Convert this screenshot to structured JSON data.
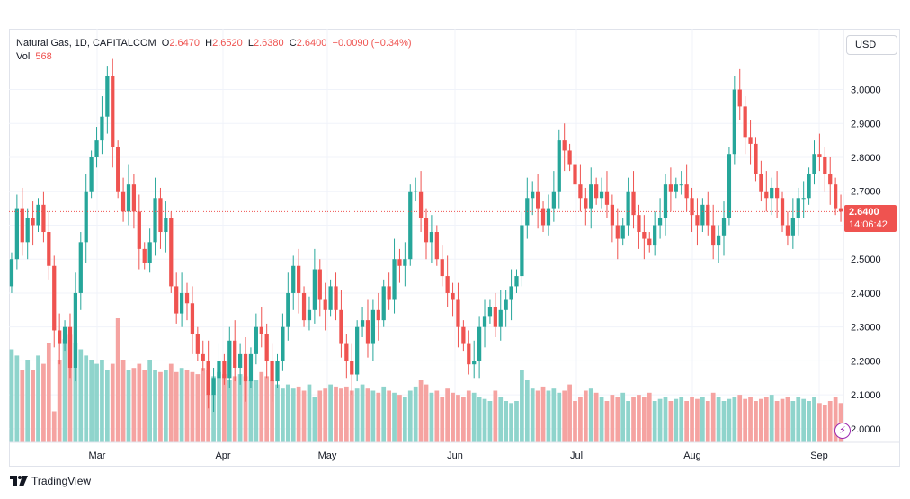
{
  "legend": {
    "symbol": "Natural Gas, 1D, CAPITALCOM",
    "o_label": "O",
    "o_value": "2.6470",
    "h_label": "H",
    "h_value": "2.6520",
    "l_label": "L",
    "l_value": "2.6380",
    "c_label": "C",
    "c_value": "2.6400",
    "change": "−0.0090 (−0.34%)",
    "vol_label": "Vol",
    "vol_value": "568"
  },
  "currency_button": "USD",
  "last_price": {
    "price": "2.6400",
    "countdown": "14:06:42"
  },
  "branding": {
    "name": "TradingView"
  },
  "colors": {
    "up": "#26a69a",
    "down": "#ef5350",
    "up_vol": "#8fd4cc",
    "down_vol": "#f5a3a1",
    "grid": "#f0f3fa"
  },
  "chart_data": {
    "type": "candlestick",
    "title": "Natural Gas, 1D, CAPITALCOM",
    "x_tick_labels": [
      "Mar",
      "Apr",
      "May",
      "Jun",
      "Jul",
      "Aug",
      "Sep"
    ],
    "y_tick_labels": [
      "3.0000",
      "2.9000",
      "2.8000",
      "2.7000",
      "2.6000",
      "2.5000",
      "2.4000",
      "2.3000",
      "2.2000",
      "2.1000",
      "2.0000"
    ],
    "ylim": [
      1.96,
      3.11
    ],
    "last_price_line": 2.64,
    "series": [
      {
        "name": "price",
        "closes": [
          2.5,
          2.65,
          2.55,
          2.62,
          2.6,
          2.66,
          2.58,
          2.48,
          2.29,
          2.25,
          2.3,
          2.18,
          2.4,
          2.55,
          2.7,
          2.8,
          2.85,
          2.92,
          3.04,
          2.83,
          2.7,
          2.64,
          2.72,
          2.64,
          2.53,
          2.49,
          2.55,
          2.68,
          2.58,
          2.62,
          2.42,
          2.34,
          2.4,
          2.37,
          2.28,
          2.22,
          2.2,
          2.1,
          2.15,
          2.2,
          2.15,
          2.26,
          2.18,
          2.22,
          2.14,
          2.22,
          2.3,
          2.28,
          2.2,
          2.14,
          2.2,
          2.3,
          2.4,
          2.48,
          2.4,
          2.32,
          2.35,
          2.47,
          2.38,
          2.35,
          2.42,
          2.35,
          2.25,
          2.2,
          2.16,
          2.3,
          2.32,
          2.25,
          2.35,
          2.32,
          2.42,
          2.38,
          2.5,
          2.48,
          2.5,
          2.7,
          2.7,
          2.62,
          2.55,
          2.58,
          2.5,
          2.45,
          2.4,
          2.38,
          2.3,
          2.25,
          2.19,
          2.2,
          2.3,
          2.33,
          2.36,
          2.3,
          2.35,
          2.38,
          2.42,
          2.45,
          2.6,
          2.68,
          2.7,
          2.65,
          2.6,
          2.65,
          2.7,
          2.85,
          2.82,
          2.78,
          2.72,
          2.68,
          2.65,
          2.72,
          2.68,
          2.7,
          2.66,
          2.6,
          2.56,
          2.6,
          2.7,
          2.63,
          2.58,
          2.56,
          2.54,
          2.6,
          2.62,
          2.72,
          2.7,
          2.72,
          2.72,
          2.68,
          2.63,
          2.6,
          2.66,
          2.6,
          2.54,
          2.57,
          2.62,
          2.81,
          3.0,
          2.95,
          2.86,
          2.84,
          2.75,
          2.7,
          2.68,
          2.71,
          2.68,
          2.6,
          2.57,
          2.62,
          2.68,
          2.68,
          2.75,
          2.81,
          2.8,
          2.75,
          2.72,
          2.65,
          2.64
        ]
      },
      {
        "name": "volume",
        "relative_heights": [
          0.45,
          0.42,
          0.35,
          0.4,
          0.35,
          0.42,
          0.38,
          0.48,
          0.15,
          0.4,
          0.5,
          0.52,
          0.48,
          0.45,
          0.42,
          0.4,
          0.38,
          0.4,
          0.35,
          0.38,
          0.6,
          0.4,
          0.35,
          0.36,
          0.38,
          0.35,
          0.4,
          0.35,
          0.34,
          0.35,
          0.38,
          0.34,
          0.36,
          0.35,
          0.34,
          0.33,
          0.36,
          0.35,
          0.32,
          0.34,
          0.33,
          0.3,
          0.32,
          0.33,
          0.32,
          0.3,
          0.3,
          0.34,
          0.32,
          0.3,
          0.28,
          0.26,
          0.28,
          0.26,
          0.27,
          0.25,
          0.28,
          0.22,
          0.25,
          0.26,
          0.28,
          0.27,
          0.26,
          0.27,
          0.25,
          0.26,
          0.28,
          0.26,
          0.25,
          0.24,
          0.27,
          0.25,
          0.24,
          0.23,
          0.22,
          0.25,
          0.27,
          0.3,
          0.28,
          0.24,
          0.25,
          0.22,
          0.26,
          0.24,
          0.23,
          0.22,
          0.25,
          0.24,
          0.22,
          0.21,
          0.2,
          0.25,
          0.22,
          0.2,
          0.19,
          0.2,
          0.35,
          0.3,
          0.26,
          0.25,
          0.27,
          0.25,
          0.26,
          0.24,
          0.25,
          0.28,
          0.2,
          0.22,
          0.25,
          0.26,
          0.24,
          0.22,
          0.2,
          0.23,
          0.22,
          0.24,
          0.2,
          0.22,
          0.23,
          0.22,
          0.24,
          0.2,
          0.21,
          0.22,
          0.2,
          0.21,
          0.22,
          0.2,
          0.22,
          0.21,
          0.22,
          0.2,
          0.24,
          0.22,
          0.2,
          0.21,
          0.22,
          0.23,
          0.21,
          0.22,
          0.2,
          0.21,
          0.22,
          0.23,
          0.2,
          0.21,
          0.22,
          0.2,
          0.22,
          0.21,
          0.2,
          0.22,
          0.19,
          0.18,
          0.2,
          0.22,
          0.19
        ]
      }
    ]
  }
}
